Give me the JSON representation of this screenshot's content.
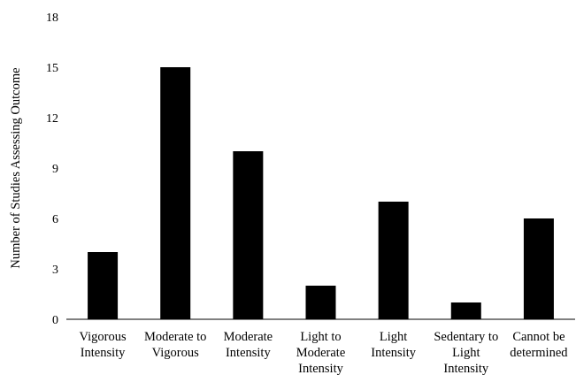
{
  "chart_data": {
    "type": "bar",
    "title": "",
    "xlabel": "",
    "ylabel": "Number of Studies Assessing Outcome",
    "ylim": [
      0,
      18
    ],
    "yticks": [
      0,
      3,
      6,
      9,
      12,
      15,
      18
    ],
    "grid": false,
    "legend": "none",
    "bar_color": "#000000",
    "categories": [
      "Vigorous Intensity",
      "Moderate to Vigorous",
      "Moderate Intensity",
      "Light to Moderate Intensity",
      "Light Intensity",
      "Sedentary to Light Intensity",
      "Cannot be determined"
    ],
    "category_lines": [
      [
        "Vigorous",
        "Intensity"
      ],
      [
        "Moderate to",
        "Vigorous"
      ],
      [
        "Moderate",
        "Intensity"
      ],
      [
        "Light to",
        "Moderate",
        "Intensity"
      ],
      [
        "Light",
        "Intensity"
      ],
      [
        "Sedentary to",
        "Light",
        "Intensity"
      ],
      [
        "Cannot be",
        "determined"
      ]
    ],
    "values": [
      4,
      15,
      10,
      2,
      7,
      1,
      6
    ]
  }
}
